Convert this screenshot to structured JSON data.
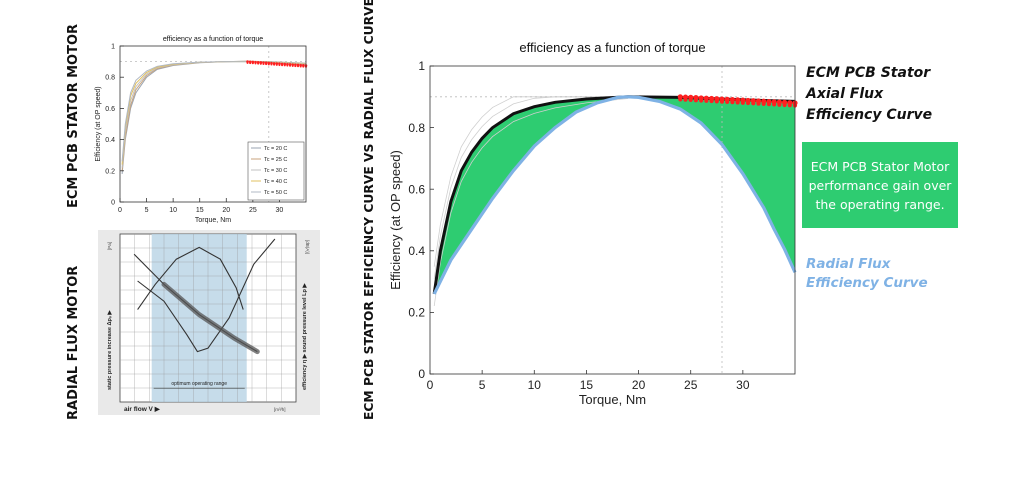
{
  "side_labels": {
    "ecm_motor": "ECM PCB STATOR MOTOR",
    "radial_motor": "RADIAL FLUX MOTOR",
    "comparison": "ECM PCB STATOR EFFICIENCY CURVE VS RADIAL FLUX CURVE"
  },
  "annotations": {
    "axial_line1": "ECM PCB Stator",
    "axial_line2": "Axial Flux",
    "axial_line3": "Efficiency Curve",
    "gain_text": "ECM PCB Stator Motor performance gain over the operating range.",
    "radial_line1": "Radial Flux",
    "radial_line2": "Efficiency Curve"
  },
  "colors": {
    "gain_fill": "#2ecc71",
    "radial_curve": "#7fb2e5",
    "axial_curve": "#111111",
    "op_point_marks": "#ff2020"
  },
  "chart_data": [
    {
      "id": "small",
      "type": "line",
      "title": "efficiency as a function of torque",
      "xlabel": "Torque, Nm",
      "ylabel": "Efficiency (at OP speed)",
      "xlim": [
        0,
        35
      ],
      "ylim": [
        0,
        1
      ],
      "xticks": [
        "0",
        "5",
        "10",
        "15",
        "20",
        "25",
        "30"
      ],
      "yticks": [
        "0",
        "0.2",
        "0.4",
        "0.6",
        "0.8",
        "1"
      ],
      "legend_position": "bottom-right",
      "series": [
        {
          "name": "Tc = 20 C",
          "color": "#9aa3b0",
          "values": [
            [
              0.4,
              0.18
            ],
            [
              1,
              0.4
            ],
            [
              2,
              0.6
            ],
            [
              3,
              0.7
            ],
            [
              5,
              0.8
            ],
            [
              7,
              0.85
            ],
            [
              10,
              0.875
            ],
            [
              15,
              0.893
            ],
            [
              20,
              0.9
            ],
            [
              24,
              0.902
            ],
            [
              28,
              0.9
            ],
            [
              35,
              0.89
            ]
          ]
        },
        {
          "name": "Tc = 25 C",
          "color": "#c8a37c",
          "values": [
            [
              0.4,
              0.2
            ],
            [
              1,
              0.42
            ],
            [
              2,
              0.62
            ],
            [
              3,
              0.72
            ],
            [
              5,
              0.81
            ],
            [
              7,
              0.855
            ],
            [
              10,
              0.878
            ],
            [
              15,
              0.894
            ],
            [
              20,
              0.9
            ],
            [
              24,
              0.902
            ],
            [
              28,
              0.899
            ],
            [
              35,
              0.888
            ]
          ]
        },
        {
          "name": "Tc = 30 C",
          "color": "#c0c0c0",
          "values": [
            [
              0.4,
              0.22
            ],
            [
              1,
              0.45
            ],
            [
              2,
              0.65
            ],
            [
              3,
              0.74
            ],
            [
              5,
              0.82
            ],
            [
              7,
              0.86
            ],
            [
              10,
              0.88
            ],
            [
              15,
              0.895
            ],
            [
              20,
              0.9
            ],
            [
              24,
              0.901
            ],
            [
              28,
              0.898
            ],
            [
              35,
              0.886
            ]
          ]
        },
        {
          "name": "Tc = 40 C",
          "color": "#e0c060",
          "values": [
            [
              0.4,
              0.24
            ],
            [
              1,
              0.48
            ],
            [
              2,
              0.68
            ],
            [
              3,
              0.76
            ],
            [
              5,
              0.83
            ],
            [
              7,
              0.865
            ],
            [
              10,
              0.883
            ],
            [
              15,
              0.896
            ],
            [
              20,
              0.9
            ],
            [
              24,
              0.9
            ],
            [
              28,
              0.896
            ],
            [
              35,
              0.883
            ]
          ]
        },
        {
          "name": "Tc = 50 C",
          "color": "#b0b8c4",
          "values": [
            [
              0.4,
              0.26
            ],
            [
              1,
              0.5
            ],
            [
              2,
              0.7
            ],
            [
              3,
              0.78
            ],
            [
              5,
              0.84
            ],
            [
              7,
              0.87
            ],
            [
              10,
              0.886
            ],
            [
              15,
              0.897
            ],
            [
              20,
              0.9
            ],
            [
              24,
              0.899
            ],
            [
              28,
              0.894
            ],
            [
              35,
              0.88
            ]
          ]
        }
      ],
      "op_points": {
        "x_from": 24,
        "x_to": 35,
        "y_from": 0.9,
        "y_to": 0.875
      }
    },
    {
      "id": "big",
      "type": "area",
      "title": "efficiency as a function of torque",
      "xlabel": "Torque, Nm",
      "ylabel": "Efficiency (at OP speed)",
      "xlim": [
        0,
        35
      ],
      "ylim": [
        0,
        1
      ],
      "xticks": [
        "0",
        "5",
        "10",
        "15",
        "20",
        "25",
        "30"
      ],
      "yticks": [
        "0",
        "0.2",
        "0.4",
        "0.6",
        "0.8",
        "1"
      ],
      "series": [
        {
          "name": "ECM PCB Stator Axial Flux Efficiency Curve",
          "color": "#111111",
          "values": [
            [
              0.4,
              0.26
            ],
            [
              1,
              0.4
            ],
            [
              2,
              0.56
            ],
            [
              3,
              0.66
            ],
            [
              4,
              0.72
            ],
            [
              5,
              0.765
            ],
            [
              6,
              0.8
            ],
            [
              8,
              0.845
            ],
            [
              10,
              0.868
            ],
            [
              12,
              0.882
            ],
            [
              15,
              0.893
            ],
            [
              19,
              0.9
            ],
            [
              24,
              0.898
            ],
            [
              28,
              0.893
            ],
            [
              32,
              0.888
            ],
            [
              35,
              0.885
            ]
          ]
        },
        {
          "name": "Radial Flux Efficiency Curve",
          "color": "#7fb2e5",
          "values": [
            [
              0.4,
              0.26
            ],
            [
              2,
              0.37
            ],
            [
              4,
              0.47
            ],
            [
              6,
              0.57
            ],
            [
              8,
              0.66
            ],
            [
              10,
              0.74
            ],
            [
              12,
              0.8
            ],
            [
              14,
              0.85
            ],
            [
              16,
              0.88
            ],
            [
              18,
              0.898
            ],
            [
              19,
              0.9
            ],
            [
              20,
              0.898
            ],
            [
              22,
              0.885
            ],
            [
              24,
              0.86
            ],
            [
              26,
              0.815
            ],
            [
              28,
              0.745
            ],
            [
              30,
              0.65
            ],
            [
              32,
              0.54
            ],
            [
              33,
              0.47
            ],
            [
              34,
              0.405
            ],
            [
              35,
              0.33
            ]
          ]
        }
      ],
      "op_points": {
        "x_from": 24,
        "x_to": 35,
        "y_from": 0.9,
        "y_to": 0.88
      }
    },
    {
      "id": "fan",
      "type": "line",
      "xlabel": "air flow  V ▶",
      "xunit": "[m³/h]",
      "ylabel_left": "static pressure increase  Δpₛ ▶",
      "ylabel_left_unit": "[Pa]",
      "ylabel_right": "efficiency η ▶  sound pressure level  Lp ▶",
      "ylabel_right_unit": "[dB(A)]",
      "band_label": "optimum operating range",
      "band_range": [
        0.18,
        0.72
      ],
      "xlim": [
        0,
        1
      ],
      "ylim": [
        0,
        1
      ],
      "series": [
        {
          "name": "",
          "color": "#333333",
          "values": [
            [
              0.08,
              0.88
            ],
            [
              0.25,
              0.7
            ],
            [
              0.45,
              0.52
            ],
            [
              0.65,
              0.38
            ],
            [
              0.78,
              0.3
            ]
          ]
        },
        {
          "name": "",
          "color": "#333333",
          "values": [
            [
              0.1,
              0.55
            ],
            [
              0.2,
              0.7
            ],
            [
              0.32,
              0.85
            ],
            [
              0.45,
              0.92
            ],
            [
              0.57,
              0.85
            ],
            [
              0.66,
              0.68
            ],
            [
              0.7,
              0.55
            ]
          ]
        },
        {
          "name": "",
          "color": "#333333",
          "values": [
            [
              0.1,
              0.72
            ],
            [
              0.25,
              0.6
            ],
            [
              0.38,
              0.4
            ],
            [
              0.44,
              0.3
            ],
            [
              0.5,
              0.32
            ],
            [
              0.62,
              0.5
            ],
            [
              0.76,
              0.82
            ],
            [
              0.88,
              0.97
            ]
          ]
        }
      ]
    }
  ]
}
